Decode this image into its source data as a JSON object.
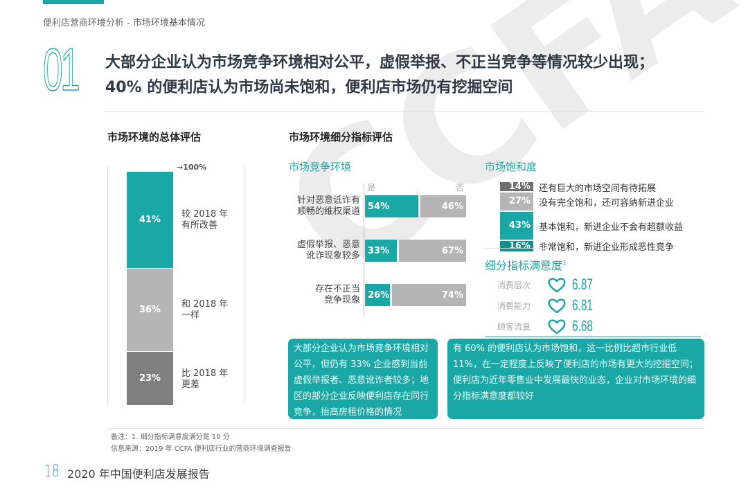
{
  "header": {
    "section": "便利店营商环境分析 - 市场环境基本情况",
    "number": "01",
    "title_line1": "大部分企业认为市场竞争环境相对公平，虚假举报、不正当竞争等情况较少出现；",
    "title_line2": "40% 的便利店认为市场尚未饱和，便利店市场仍有挖掘空间"
  },
  "overall": {
    "heading": "市场环境的总体评估",
    "top_label": "100%",
    "segments": [
      {
        "value": "41%",
        "label": "较 2018 年\n有所改善",
        "color": "#1aa8a6"
      },
      {
        "value": "36%",
        "label": "和 2018 年\n一样",
        "color": "#b5b5b5"
      },
      {
        "value": "23%",
        "label": "比 2018 年\n更差",
        "color": "#808080"
      }
    ]
  },
  "detail": {
    "heading": "市场环境细分指标评估",
    "competition": {
      "title": "市场竞争环境",
      "yes": "是",
      "no": "否",
      "rows": [
        {
          "label": "针对恶意诋诈有\n顺畅的维权渠道",
          "yes": "54%",
          "no": "46%"
        },
        {
          "label": "虚假举报、恶意\n讹诈现象较多",
          "yes": "33%",
          "no": "67%"
        },
        {
          "label": "存在不正当\n竞争现象",
          "yes": "26%",
          "no": "74%"
        }
      ]
    },
    "saturation": {
      "title": "市场饱和度",
      "items": [
        {
          "value": "14%",
          "label": "还有巨大的市场空间有待拓展",
          "color": "#6d6d6d"
        },
        {
          "value": "27%",
          "label": "没有完全饱和，还可容纳新进企业",
          "color": "#b5b5b5"
        },
        {
          "value": "43%",
          "label": "基本饱和，新进企业不会有超额收益",
          "color": "#1aa8a6"
        },
        {
          "value": "16%",
          "label": "非常饱和，新进企业形成恶性竞争",
          "color": "#128f8d"
        }
      ]
    },
    "satisfaction": {
      "title": "细分指标满意度",
      "sup": "1",
      "icon": "heart-icon",
      "items": [
        {
          "label": "消费层次",
          "value": "6.87"
        },
        {
          "label": "消费能力",
          "value": "6.81"
        },
        {
          "label": "顾客流量",
          "value": "6.68"
        }
      ]
    }
  },
  "boxes": {
    "left": "大部分企业认为市场竞争环境相对公平，但仍有 33% 企业感到当前虚假举报者、恶意讹诈者较多；地区的部分企业反映便利店存在同行竞争，抬高房租价格的情况",
    "right": "有 60% 的便利店认为市场饱和，这一比例比超市行业低 11%，在一定程度上反映了便利店的市场有更大的挖掘空间；便利店为近年零售业中发展最快的业态，企业对市场环境的细分指标满意度都较好"
  },
  "notes": {
    "note": "备注：1. 细分指标满意度满分是 10 分",
    "source": "信息来源：2019 年 CCFA 便利店行业的营商环境调查报告"
  },
  "footer": {
    "page": "18",
    "report": "2020 年中国便利店发展报告"
  },
  "watermark": "CCFA",
  "colors": {
    "accent": "#1aa8a6",
    "gray": "#b5b5b5",
    "dark_gray": "#808080"
  },
  "chart_data": [
    {
      "type": "bar",
      "stacked": true,
      "categories": [
        "总体评估"
      ],
      "series": [
        {
          "name": "较 2018 年有所改善",
          "values": [
            41
          ]
        },
        {
          "name": "和 2018 年一样",
          "values": [
            36
          ]
        },
        {
          "name": "比 2018 年更差",
          "values": [
            23
          ]
        }
      ],
      "ylim": [
        0,
        100
      ]
    },
    {
      "type": "bar",
      "orientation": "horizontal",
      "stacked": true,
      "categories": [
        "针对恶意诋诈有顺畅的维权渠道",
        "虚假举报、恶意讹诈现象较多",
        "存在不正当竞争现象"
      ],
      "series": [
        {
          "name": "是",
          "values": [
            54,
            33,
            26
          ]
        },
        {
          "name": "否",
          "values": [
            46,
            67,
            74
          ]
        }
      ]
    },
    {
      "type": "bar",
      "stacked": true,
      "categories": [
        "市场饱和度"
      ],
      "series": [
        {
          "name": "还有巨大的市场空间有待拓展",
          "values": [
            14
          ]
        },
        {
          "name": "没有完全饱和，还可容纳新进企业",
          "values": [
            27
          ]
        },
        {
          "name": "基本饱和，新进企业不会有超额收益",
          "values": [
            43
          ]
        },
        {
          "name": "非常饱和，新进企业形成恶性竞争",
          "values": [
            16
          ]
        }
      ]
    }
  ]
}
